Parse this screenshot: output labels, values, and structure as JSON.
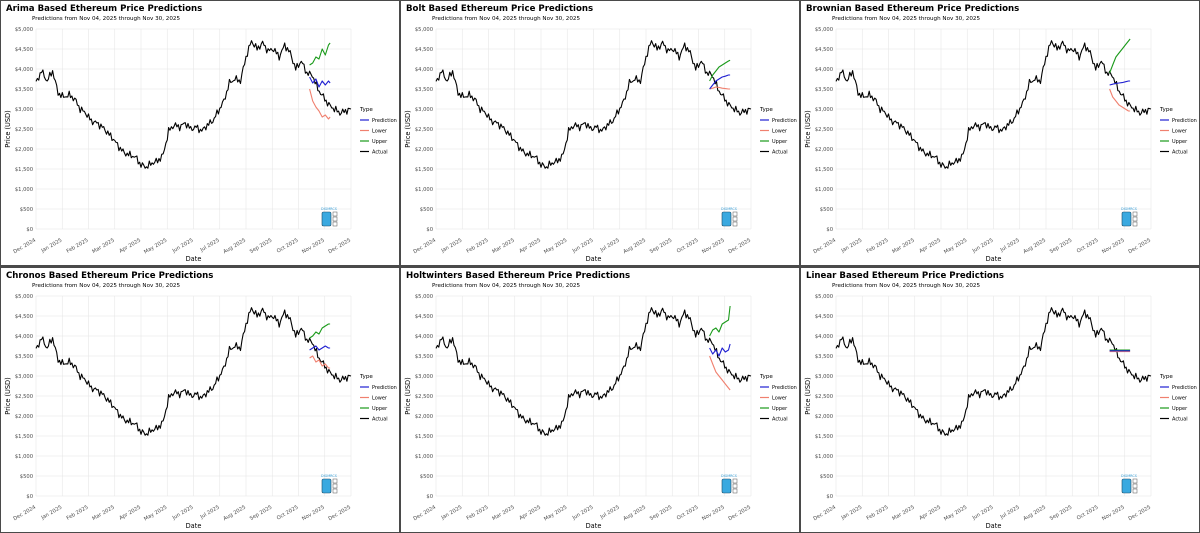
{
  "colors": {
    "prediction": "#1f1fd1",
    "lower": "#f0806f",
    "upper": "#1a9a1a",
    "actual": "#000000",
    "grid": "#e6e6e6"
  },
  "watermark": "DIGMRCS",
  "chart_data": [
    {
      "type": "line",
      "title": "Arima Based Ethereum Price Predictions",
      "subtitle": "Predictions from Nov 04, 2025 through Nov 30, 2025",
      "xlabel": "Date",
      "ylabel": "Price (USD)",
      "ylim": [
        0,
        5000
      ],
      "y_ticks": [
        "$0",
        "$500",
        "$1,000",
        "$1,500",
        "$2,000",
        "$2,500",
        "$3,000",
        "$3,500",
        "$4,000",
        "$4,500",
        "$5,000"
      ],
      "x_ticks": [
        "Dec 2024",
        "Jan 2025",
        "Feb 2025",
        "Mar 2025",
        "Apr 2025",
        "May 2025",
        "Jun 2025",
        "Jul 2025",
        "Aug 2025",
        "Sep 2025",
        "Oct 2025",
        "Nov 2025",
        "Dec 2025"
      ],
      "legend_title": "Type",
      "legend": [
        "Prediction",
        "Lower",
        "Upper",
        "Actual"
      ],
      "forecast_days": [
        0,
        4,
        8,
        12,
        16,
        20,
        24,
        26
      ],
      "prediction": [
        3800,
        3650,
        3750,
        3550,
        3700,
        3600,
        3700,
        3650
      ],
      "lower": [
        3500,
        3200,
        3050,
        2950,
        2800,
        2850,
        2750,
        2800
      ],
      "upper": [
        4100,
        4150,
        4300,
        4250,
        4500,
        4350,
        4600,
        4650
      ]
    },
    {
      "type": "line",
      "title": "Bolt Based Ethereum Price Predictions",
      "subtitle": "Predictions from Nov 04, 2025 through Nov 30, 2025",
      "xlabel": "Date",
      "ylabel": "Price (USD)",
      "ylim": [
        0,
        5000
      ],
      "y_ticks": [
        "$0",
        "$500",
        "$1,000",
        "$1,500",
        "$2,000",
        "$2,500",
        "$3,000",
        "$3,500",
        "$4,000",
        "$4,500",
        "$5,000"
      ],
      "x_ticks": [
        "Dec 2024",
        "Jan 2025",
        "Feb 2025",
        "Mar 2025",
        "Apr 2025",
        "May 2025",
        "Jun 2025",
        "Jul 2025",
        "Aug 2025",
        "Sep 2025",
        "Oct 2025",
        "Nov 2025",
        "Dec 2025"
      ],
      "legend_title": "Type",
      "legend": [
        "Prediction",
        "Lower",
        "Upper",
        "Actual"
      ],
      "forecast_days": [
        0,
        4,
        8,
        12,
        16,
        20,
        24,
        26
      ],
      "prediction": [
        3500,
        3600,
        3700,
        3750,
        3800,
        3820,
        3850,
        3850
      ],
      "lower": [
        3500,
        3520,
        3550,
        3540,
        3520,
        3510,
        3500,
        3500
      ],
      "upper": [
        3700,
        3850,
        3950,
        4050,
        4100,
        4150,
        4200,
        4220
      ]
    },
    {
      "type": "line",
      "title": "Brownian Based Ethereum Price Predictions",
      "subtitle": "Predictions from Nov 04, 2025 through Nov 30, 2025",
      "xlabel": "Date",
      "ylabel": "Price (USD)",
      "ylim": [
        0,
        5000
      ],
      "y_ticks": [
        "$0",
        "$500",
        "$1,000",
        "$1,500",
        "$2,000",
        "$2,500",
        "$3,000",
        "$3,500",
        "$4,000",
        "$4,500",
        "$5,000"
      ],
      "x_ticks": [
        "Dec 2024",
        "Jan 2025",
        "Feb 2025",
        "Mar 2025",
        "Apr 2025",
        "May 2025",
        "Jun 2025",
        "Jul 2025",
        "Aug 2025",
        "Sep 2025",
        "Oct 2025",
        "Nov 2025",
        "Dec 2025"
      ],
      "legend_title": "Type",
      "legend": [
        "Prediction",
        "Lower",
        "Upper",
        "Actual"
      ],
      "forecast_days": [
        0,
        4,
        8,
        12,
        16,
        20,
        24,
        26
      ],
      "prediction": [
        3600,
        3620,
        3640,
        3650,
        3660,
        3680,
        3700,
        3700
      ],
      "lower": [
        3500,
        3300,
        3200,
        3100,
        3050,
        3000,
        2950,
        2950
      ],
      "upper": [
        3900,
        4100,
        4300,
        4400,
        4500,
        4600,
        4700,
        4750
      ]
    },
    {
      "type": "line",
      "title": "Chronos Based Ethereum Price Predictions",
      "subtitle": "Predictions from Nov 04, 2025 through Nov 30, 2025",
      "xlabel": "Date",
      "ylabel": "Price (USD)",
      "ylim": [
        0,
        5000
      ],
      "y_ticks": [
        "$0",
        "$500",
        "$1,000",
        "$1,500",
        "$2,000",
        "$2,500",
        "$3,000",
        "$3,500",
        "$4,000",
        "$4,500",
        "$5,000"
      ],
      "x_ticks": [
        "Dec 2024",
        "Jan 2025",
        "Feb 2025",
        "Mar 2025",
        "Apr 2025",
        "May 2025",
        "Jun 2025",
        "Jul 2025",
        "Aug 2025",
        "Sep 2025",
        "Oct 2025",
        "Nov 2025",
        "Dec 2025"
      ],
      "legend_title": "Type",
      "legend": [
        "Prediction",
        "Lower",
        "Upper",
        "Actual"
      ],
      "forecast_days": [
        0,
        4,
        8,
        12,
        16,
        20,
        24,
        26
      ],
      "prediction": [
        3650,
        3700,
        3750,
        3650,
        3700,
        3750,
        3700,
        3700
      ],
      "lower": [
        3450,
        3500,
        3350,
        3400,
        3250,
        3300,
        3200,
        3200
      ],
      "upper": [
        3950,
        4000,
        4100,
        4050,
        4200,
        4250,
        4300,
        4300
      ]
    },
    {
      "type": "line",
      "title": "Holtwinters Based Ethereum Price Predictions",
      "subtitle": "Predictions from Nov 04, 2025 through Nov 30, 2025",
      "xlabel": "Date",
      "ylabel": "Price (USD)",
      "ylim": [
        0,
        5000
      ],
      "y_ticks": [
        "$0",
        "$500",
        "$1,000",
        "$1,500",
        "$2,000",
        "$2,500",
        "$3,000",
        "$3,500",
        "$4,000",
        "$4,500",
        "$5,000"
      ],
      "x_ticks": [
        "Dec 2024",
        "Jan 2025",
        "Feb 2025",
        "Mar 2025",
        "Apr 2025",
        "May 2025",
        "Jun 2025",
        "Jul 2025",
        "Aug 2025",
        "Sep 2025",
        "Oct 2025",
        "Nov 2025",
        "Dec 2025"
      ],
      "legend_title": "Type",
      "legend": [
        "Prediction",
        "Lower",
        "Upper",
        "Actual"
      ],
      "forecast_days": [
        0,
        4,
        8,
        12,
        16,
        20,
        24,
        26
      ],
      "prediction": [
        3700,
        3550,
        3650,
        3500,
        3700,
        3600,
        3650,
        3800
      ],
      "lower": [
        3500,
        3300,
        3100,
        3000,
        2900,
        2800,
        2700,
        2650
      ],
      "upper": [
        4000,
        4150,
        4200,
        4100,
        4300,
        4350,
        4400,
        4750
      ]
    },
    {
      "type": "line",
      "title": "Linear Based Ethereum Price Predictions",
      "subtitle": "Predictions from Nov 04, 2025 through Nov 30, 2025",
      "xlabel": "Date",
      "ylabel": "Price (USD)",
      "ylim": [
        0,
        5000
      ],
      "y_ticks": [
        "$0",
        "$500",
        "$1,000",
        "$1,500",
        "$2,000",
        "$2,500",
        "$3,000",
        "$3,500",
        "$4,000",
        "$4,500",
        "$5,000"
      ],
      "x_ticks": [
        "Dec 2024",
        "Jan 2025",
        "Feb 2025",
        "Mar 2025",
        "Apr 2025",
        "May 2025",
        "Jun 2025",
        "Jul 2025",
        "Aug 2025",
        "Sep 2025",
        "Oct 2025",
        "Nov 2025",
        "Dec 2025"
      ],
      "legend_title": "Type",
      "legend": [
        "Prediction",
        "Lower",
        "Upper",
        "Actual"
      ],
      "forecast_days": [
        0,
        4,
        8,
        12,
        16,
        20,
        24,
        26
      ],
      "prediction": [
        3630,
        3630,
        3630,
        3630,
        3630,
        3630,
        3630,
        3630
      ],
      "lower": [
        3610,
        3610,
        3610,
        3610,
        3610,
        3610,
        3610,
        3610
      ],
      "upper": [
        3650,
        3650,
        3650,
        3650,
        3650,
        3650,
        3650,
        3650
      ]
    }
  ],
  "actual_series": {
    "name": "Actual",
    "start": "Dec 2024",
    "step_days": 7,
    "values": [
      3650,
      3950,
      3700,
      3950,
      3400,
      3300,
      3350,
      3250,
      3000,
      2900,
      2700,
      2650,
      2550,
      2400,
      2250,
      2050,
      1900,
      1850,
      1800,
      1600,
      1550,
      1650,
      1700,
      1850,
      2450,
      2600,
      2550,
      2650,
      2500,
      2550,
      2450,
      2600,
      2700,
      2950,
      3200,
      3650,
      3750,
      3700,
      4300,
      4700,
      4500,
      4650,
      4450,
      4500,
      4300,
      4600,
      4400,
      4000,
      4200,
      3900,
      3850,
      3500,
      3300,
      3100,
      3000,
      2900,
      2950,
      3000
    ]
  }
}
